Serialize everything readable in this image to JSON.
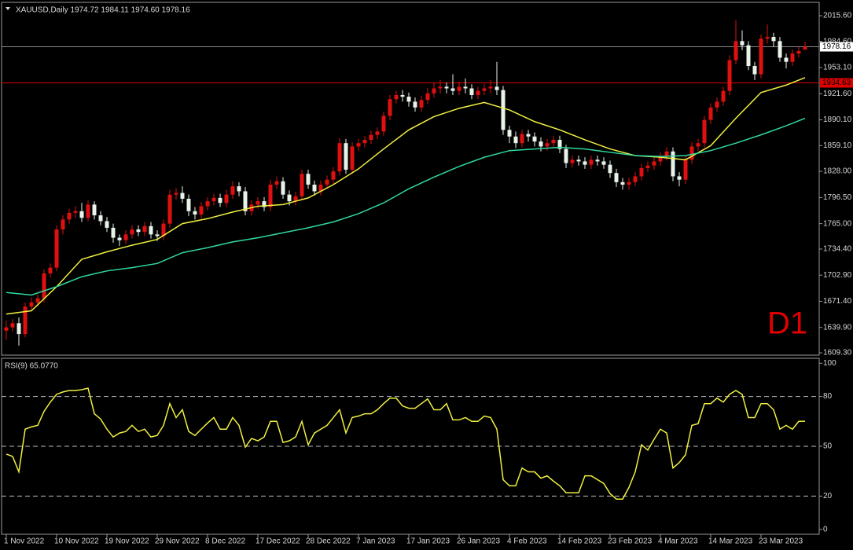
{
  "chart_data": [
    {
      "type": "candlestick",
      "title": "XAUUSD,Daily 1974.72 1984.11 1974.60 1978.16",
      "annotation": "D1",
      "annotation_color": "#e00000",
      "up_color": "#e01010",
      "down_color": "#e8f4ea",
      "categories": [
        "1 Nov 2022",
        null,
        null,
        null,
        null,
        null,
        null,
        null,
        "10 Nov 2022",
        null,
        null,
        null,
        null,
        null,
        null,
        null,
        "19 Nov 2022",
        null,
        null,
        null,
        null,
        null,
        null,
        null,
        "29 Nov 2022",
        null,
        null,
        null,
        null,
        null,
        null,
        null,
        "8 Dec 2022",
        null,
        null,
        null,
        null,
        null,
        null,
        null,
        "17 Dec 2022",
        null,
        null,
        null,
        null,
        null,
        null,
        null,
        "28 Dec 2022",
        null,
        null,
        null,
        null,
        null,
        null,
        null,
        "7 Jan 2023",
        null,
        null,
        null,
        null,
        null,
        null,
        null,
        "17 Jan 2023",
        null,
        null,
        null,
        null,
        null,
        null,
        null,
        "26 Jan 2023",
        null,
        null,
        null,
        null,
        null,
        null,
        null,
        "4 Feb 2023",
        null,
        null,
        null,
        null,
        null,
        null,
        null,
        "14 Feb 2023",
        null,
        null,
        null,
        null,
        null,
        null,
        null,
        "23 Feb 2023",
        null,
        null,
        null,
        null,
        null,
        null,
        null,
        "4 Mar 2023",
        null,
        null,
        null,
        null,
        null,
        null,
        null,
        "14 Mar 2023",
        null,
        null,
        null,
        null,
        null,
        null,
        null,
        "23 Mar 2023",
        null,
        null,
        null,
        null,
        null,
        null,
        null
      ],
      "open": [
        1636,
        1640,
        1645,
        1632,
        1665,
        1670,
        1675,
        1705,
        1712,
        1758,
        1770,
        1778,
        1780,
        1772,
        1788,
        1775,
        1768,
        1760,
        1748,
        1745,
        1752,
        1758,
        1755,
        1762,
        1752,
        1750,
        1765,
        1800,
        1802,
        1795,
        1780,
        1776,
        1786,
        1792,
        1796,
        1790,
        1800,
        1810,
        1804,
        1780,
        1788,
        1792,
        1785,
        1812,
        1816,
        1800,
        1792,
        1798,
        1825,
        1812,
        1804,
        1812,
        1818,
        1828,
        1862,
        1830,
        1858,
        1862,
        1866,
        1872,
        1876,
        1895,
        1915,
        1920,
        1918,
        1912,
        1905,
        1914,
        1922,
        1928,
        1930,
        1928,
        1925,
        1930,
        1928,
        1920,
        1925,
        1928,
        1930,
        1926,
        1878,
        1870,
        1862,
        1873,
        1870,
        1864,
        1858,
        1862,
        1866,
        1855,
        1838,
        1842,
        1840,
        1836,
        1842,
        1840,
        1836,
        1826,
        1815,
        1812,
        1815,
        1822,
        1832,
        1835,
        1840,
        1846,
        1852,
        1822,
        1818,
        1842,
        1858,
        1862,
        1890,
        1905,
        1912,
        1925,
        1962,
        1985,
        1980,
        1955,
        1945,
        1988,
        1990,
        1985,
        1965,
        1960,
        1970,
        1974.72
      ],
      "high": [
        1648,
        1650,
        1652,
        1670,
        1676,
        1680,
        1710,
        1717,
        1763,
        1775,
        1783,
        1786,
        1790,
        1793,
        1792,
        1780,
        1773,
        1765,
        1752,
        1757,
        1763,
        1763,
        1767,
        1767,
        1757,
        1770,
        1806,
        1808,
        1810,
        1800,
        1785,
        1791,
        1797,
        1801,
        1801,
        1806,
        1816,
        1815,
        1809,
        1793,
        1797,
        1797,
        1818,
        1822,
        1821,
        1805,
        1803,
        1830,
        1830,
        1817,
        1817,
        1823,
        1833,
        1868,
        1867,
        1863,
        1867,
        1871,
        1877,
        1881,
        1900,
        1920,
        1925,
        1926,
        1923,
        1917,
        1919,
        1928,
        1935,
        1938,
        1935,
        1945,
        1936,
        1940,
        1933,
        1930,
        1933,
        1938,
        1960,
        1931,
        1883,
        1876,
        1878,
        1878,
        1875,
        1869,
        1867,
        1871,
        1871,
        1860,
        1847,
        1847,
        1845,
        1847,
        1847,
        1845,
        1841,
        1831,
        1820,
        1820,
        1827,
        1837,
        1840,
        1845,
        1851,
        1857,
        1857,
        1827,
        1847,
        1863,
        1867,
        1895,
        1910,
        1917,
        1930,
        1968,
        2010,
        1998,
        1985,
        1960,
        1993,
        2005,
        1995,
        1990,
        1970,
        1975,
        1978,
        1984.11
      ],
      "low": [
        1625,
        1635,
        1618,
        1628,
        1660,
        1665,
        1670,
        1700,
        1708,
        1752,
        1765,
        1772,
        1767,
        1768,
        1770,
        1763,
        1755,
        1742,
        1738,
        1740,
        1747,
        1750,
        1750,
        1747,
        1744,
        1745,
        1760,
        1794,
        1790,
        1774,
        1770,
        1771,
        1781,
        1787,
        1785,
        1785,
        1795,
        1798,
        1775,
        1775,
        1783,
        1780,
        1780,
        1807,
        1795,
        1787,
        1787,
        1793,
        1807,
        1799,
        1799,
        1807,
        1813,
        1823,
        1825,
        1825,
        1853,
        1857,
        1861,
        1867,
        1871,
        1890,
        1910,
        1912,
        1906,
        1900,
        1900,
        1909,
        1917,
        1922,
        1922,
        1920,
        1920,
        1922,
        1915,
        1915,
        1920,
        1922,
        1920,
        1872,
        1862,
        1856,
        1857,
        1864,
        1858,
        1852,
        1853,
        1857,
        1850,
        1832,
        1833,
        1835,
        1831,
        1831,
        1835,
        1831,
        1820,
        1809,
        1806,
        1806,
        1810,
        1817,
        1827,
        1830,
        1835,
        1841,
        1816,
        1810,
        1813,
        1837,
        1853,
        1857,
        1885,
        1900,
        1907,
        1920,
        1957,
        1974,
        1950,
        1938,
        1940,
        1982,
        1978,
        1960,
        1952,
        1955,
        1965,
        1974.6
      ],
      "close": [
        1640,
        1645,
        1632,
        1665,
        1670,
        1675,
        1705,
        1712,
        1758,
        1770,
        1778,
        1780,
        1772,
        1788,
        1775,
        1768,
        1760,
        1748,
        1745,
        1752,
        1758,
        1755,
        1762,
        1752,
        1750,
        1765,
        1800,
        1802,
        1795,
        1780,
        1776,
        1786,
        1792,
        1796,
        1790,
        1800,
        1810,
        1804,
        1780,
        1788,
        1792,
        1785,
        1812,
        1816,
        1800,
        1792,
        1798,
        1825,
        1812,
        1804,
        1812,
        1818,
        1828,
        1862,
        1830,
        1858,
        1862,
        1866,
        1872,
        1876,
        1895,
        1915,
        1920,
        1918,
        1912,
        1905,
        1914,
        1922,
        1928,
        1930,
        1928,
        1925,
        1930,
        1928,
        1920,
        1925,
        1928,
        1930,
        1926,
        1878,
        1870,
        1862,
        1873,
        1870,
        1864,
        1858,
        1862,
        1866,
        1855,
        1838,
        1842,
        1840,
        1836,
        1842,
        1840,
        1836,
        1826,
        1815,
        1812,
        1815,
        1822,
        1832,
        1835,
        1840,
        1846,
        1852,
        1822,
        1818,
        1842,
        1858,
        1862,
        1890,
        1905,
        1912,
        1925,
        1962,
        1985,
        1980,
        1955,
        1945,
        1988,
        1990,
        1985,
        1965,
        1960,
        1970,
        1973,
        1978.16
      ],
      "lines": [
        {
          "color": "#f0f040",
          "x": [
            0,
            4,
            8,
            12,
            16,
            20,
            24,
            28,
            32,
            36,
            40,
            44,
            48,
            52,
            56,
            60,
            64,
            68,
            72,
            76,
            80,
            84,
            88,
            92,
            96,
            100,
            104,
            108,
            112,
            116,
            120,
            124,
            127
          ],
          "values": [
            1656,
            1660,
            1689,
            1722,
            1731,
            1739,
            1746,
            1765,
            1771,
            1779,
            1786,
            1788,
            1796,
            1812,
            1831,
            1855,
            1878,
            1894,
            1904,
            1911,
            1902,
            1888,
            1878,
            1866,
            1855,
            1847,
            1845,
            1842,
            1859,
            1892,
            1923,
            1932,
            1941
          ]
        },
        {
          "color": "#30d8a0",
          "x": [
            0,
            4,
            8,
            12,
            16,
            20,
            24,
            28,
            32,
            36,
            40,
            44,
            48,
            52,
            56,
            60,
            64,
            68,
            72,
            76,
            80,
            84,
            88,
            92,
            96,
            100,
            104,
            108,
            112,
            116,
            120,
            124,
            127
          ],
          "values": [
            1682,
            1679,
            1689,
            1701,
            1708,
            1712,
            1717,
            1730,
            1736,
            1743,
            1748,
            1754,
            1760,
            1767,
            1777,
            1790,
            1807,
            1821,
            1834,
            1845,
            1853,
            1855,
            1857,
            1855,
            1851,
            1847,
            1846,
            1847,
            1853,
            1862,
            1872,
            1883,
            1892
          ]
        }
      ],
      "levels": [
        {
          "value": 1978.16,
          "label": "1978.16",
          "color": "#8a8a8a",
          "box_color": "#ffffff"
        },
        {
          "value": 1934.63,
          "label": "1934.63",
          "color": "#e00000",
          "box_color": "#e00000"
        }
      ],
      "ylim": [
        1606.5,
        2031.7
      ],
      "yticks": [
        {
          "value": 2015.6,
          "label": "2015.60"
        },
        {
          "value": 1984.6,
          "label": "1984.60"
        },
        {
          "value": 1953.1,
          "label": "1953.10"
        },
        {
          "value": 1921.6,
          "label": "1921.60"
        },
        {
          "value": 1890.1,
          "label": "1890.10"
        },
        {
          "value": 1859.1,
          "label": "1859.10"
        },
        {
          "value": 1828,
          "label": "1828.00"
        },
        {
          "value": 1796.5,
          "label": "1796.50"
        },
        {
          "value": 1765,
          "label": "1765.00"
        },
        {
          "value": 1734.4,
          "label": "1734.40"
        },
        {
          "value": 1702.9,
          "label": "1702.90"
        },
        {
          "value": 1671.4,
          "label": "1671.40"
        },
        {
          "value": 1639.9,
          "label": "1639.90"
        },
        {
          "value": 1609.3,
          "label": "1609.30"
        }
      ]
    },
    {
      "type": "line",
      "title": "RSI(9) 65.0770",
      "color": "#f0f040",
      "values": [
        45.3,
        43.9,
        34.6,
        60.3,
        61.7,
        62.6,
        71,
        76.6,
        81.3,
        82.7,
        83.6,
        83.6,
        84.1,
        85,
        69.6,
        66.4,
        60.3,
        55.6,
        58,
        58.9,
        62.6,
        58.9,
        60.3,
        55.6,
        56.5,
        62.6,
        75.7,
        67.3,
        72,
        58.9,
        56.5,
        60.3,
        64,
        67.3,
        60.3,
        60.3,
        67.3,
        62.6,
        49.5,
        54.7,
        53.3,
        55.6,
        65,
        65,
        52.3,
        53.3,
        55.6,
        65,
        50.9,
        58,
        60.3,
        62.6,
        67.3,
        72,
        58,
        67.3,
        68.2,
        69.6,
        69.6,
        72,
        75.7,
        79,
        79,
        74.3,
        72.9,
        72.9,
        75.7,
        78.5,
        72,
        72,
        75.7,
        65.9,
        65.9,
        67.3,
        65,
        65,
        68.2,
        67.3,
        60.3,
        29.9,
        26.2,
        26.2,
        36.9,
        34.6,
        34.6,
        30.8,
        32.2,
        29,
        26.2,
        22,
        22,
        22,
        32.2,
        32.2,
        29.9,
        27.6,
        21.5,
        18.2,
        18.2,
        25.2,
        34.6,
        50.9,
        47.7,
        54.2,
        60.3,
        58,
        36.9,
        40.2,
        44.9,
        62.6,
        63.6,
        75.7,
        75.7,
        79,
        76.6,
        81.3,
        83.6,
        81.3,
        67.3,
        67.3,
        75.7,
        75.7,
        72,
        60.3,
        62.6,
        60.3,
        65,
        65.077
      ],
      "levels": [
        80,
        50,
        20
      ],
      "ylim": [
        -3,
        103
      ],
      "yticks": [
        100,
        80,
        50,
        20,
        0
      ]
    }
  ]
}
